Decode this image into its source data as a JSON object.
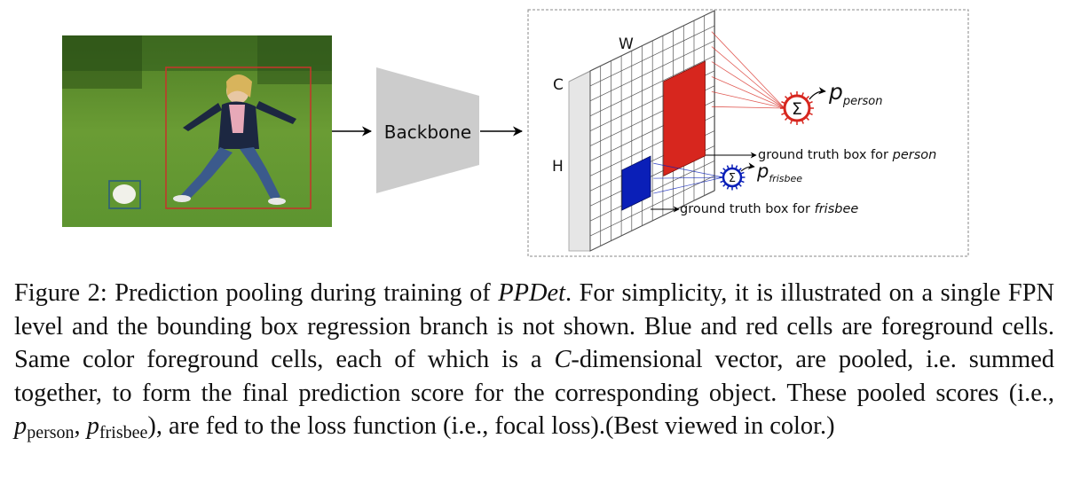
{
  "figure": {
    "backbone_label": "Backbone",
    "feature_map": {
      "width_label": "W",
      "channel_label": "C",
      "height_label": "H"
    },
    "sum_symbol": "Σ",
    "person_score": {
      "p": "p",
      "sub": "person"
    },
    "frisbee_score": {
      "p": "p",
      "sub": "frisbee"
    },
    "gt_person": {
      "prefix": "ground truth box for ",
      "object": "person"
    },
    "gt_frisbee": {
      "prefix": "ground truth box for ",
      "object": "frisbee"
    },
    "colors": {
      "person": "#d7261e",
      "frisbee": "#0a1fb8",
      "person_box": "#c0392b",
      "frisbee_box": "#2c5f7a",
      "backbone": "#cccccc",
      "grass": "#5a8f2c"
    }
  },
  "caption": {
    "label": "Figure 2:",
    "t1": " Prediction pooling during training of ",
    "method": "PPDet",
    "t2": ". For simplicity, it is illustrated on a single FPN level and the bounding box regression branch is not shown. Blue and red cells are foreground cells. Same color foreground cells, each of which is a ",
    "dim": "C",
    "t3": "-dimensional vector, are pooled, i.e. summed together, to form the final prediction score for the corresponding object. These pooled scores (i.e., ",
    "p1": "p",
    "s1": "person",
    "comma": ", ",
    "p2": "p",
    "s2": "frisbee",
    "t4": "), are fed to the loss function (i.e., focal loss).(Best viewed in color.)"
  }
}
